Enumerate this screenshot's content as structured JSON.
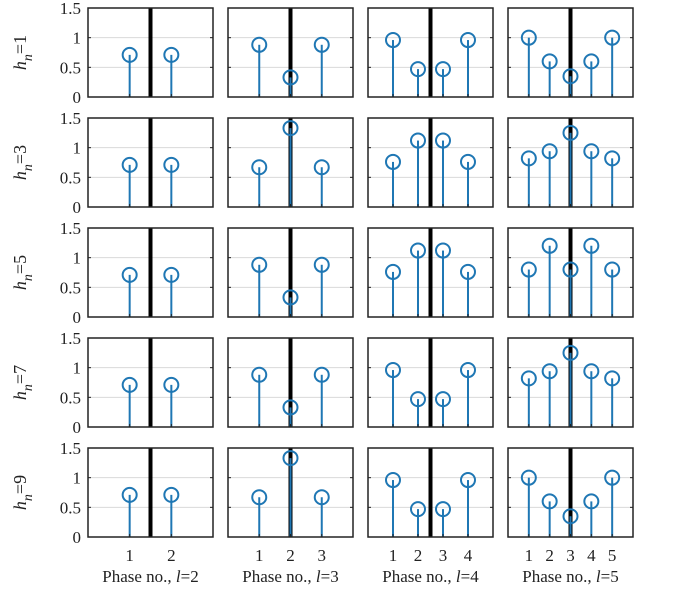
{
  "colors": {
    "stem": "#1f77b4",
    "divider": "#000000",
    "grid": "#d9d9d9",
    "frame": "#222222"
  },
  "chart_data": {
    "type": "stem-grid",
    "rows": [
      {
        "ylabel": {
          "h": "h",
          "sub": "n",
          "eq": "=1"
        }
      },
      {
        "ylabel": {
          "h": "h",
          "sub": "n",
          "eq": "=3"
        }
      },
      {
        "ylabel": {
          "h": "h",
          "sub": "n",
          "eq": "=5"
        }
      },
      {
        "ylabel": {
          "h": "h",
          "sub": "n",
          "eq": "=7"
        }
      },
      {
        "ylabel": {
          "h": "h",
          "sub": "n",
          "eq": "=9"
        }
      }
    ],
    "columns": [
      {
        "l": 2,
        "xlabel": {
          "text": "Phase no., ",
          "var": "l",
          "eq": "=2"
        },
        "xticks": [
          "1",
          "2"
        ]
      },
      {
        "l": 3,
        "xlabel": {
          "text": "Phase no., ",
          "var": "l",
          "eq": "=3"
        },
        "xticks": [
          "1",
          "2",
          "3"
        ]
      },
      {
        "l": 4,
        "xlabel": {
          "text": "Phase no., ",
          "var": "l",
          "eq": "=4"
        },
        "xticks": [
          "1",
          "2",
          "3",
          "4"
        ]
      },
      {
        "l": 5,
        "xlabel": {
          "text": "Phase no., ",
          "var": "l",
          "eq": "=5"
        },
        "xticks": [
          "1",
          "2",
          "3",
          "4",
          "5"
        ]
      }
    ],
    "ylim": [
      0,
      1.5
    ],
    "yticks": [
      "0",
      "0.5",
      "1",
      "1.5"
    ],
    "grid": "horizontal",
    "values": [
      [
        [
          0.71,
          0.71
        ],
        [
          0.88,
          0.33,
          0.88
        ],
        [
          0.96,
          0.47,
          0.47,
          0.96
        ],
        [
          1.0,
          0.6,
          0.35,
          0.6,
          1.0
        ]
      ],
      [
        [
          0.71,
          0.71
        ],
        [
          0.67,
          1.33,
          0.67
        ],
        [
          0.76,
          1.12,
          1.12,
          0.76
        ],
        [
          0.82,
          0.94,
          1.25,
          0.94,
          0.82
        ]
      ],
      [
        [
          0.71,
          0.71
        ],
        [
          0.88,
          0.33,
          0.88
        ],
        [
          0.76,
          1.12,
          1.12,
          0.76
        ],
        [
          0.8,
          1.2,
          0.8,
          1.2,
          0.8
        ]
      ],
      [
        [
          0.71,
          0.71
        ],
        [
          0.88,
          0.33,
          0.88
        ],
        [
          0.96,
          0.47,
          0.47,
          0.96
        ],
        [
          0.82,
          0.94,
          1.25,
          0.94,
          0.82
        ]
      ],
      [
        [
          0.71,
          0.71
        ],
        [
          0.67,
          1.33,
          0.67
        ],
        [
          0.96,
          0.47,
          0.47,
          0.96
        ],
        [
          1.0,
          0.6,
          0.35,
          0.6,
          1.0
        ]
      ]
    ]
  }
}
